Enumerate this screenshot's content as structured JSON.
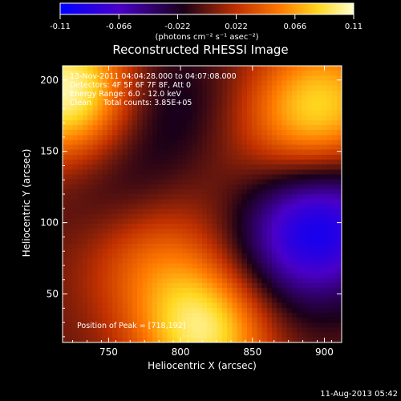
{
  "colorbar": {
    "ticks": [
      "-0.11",
      "-0.066",
      "-0.022",
      "0.022",
      "0.066",
      "0.11"
    ],
    "unit_label": "(photons cm⁻² s⁻¹ asec⁻²)"
  },
  "header": {
    "title": "Reconstructed RHESSI Image"
  },
  "info": {
    "line1": "13-Nov-2011 04:04:28.000 to 04:07:08.000",
    "line2": "Detectors: 4F 5F 6F 7F 8F, Att 0",
    "line3": "Energy Range: 6.0 - 12.0 keV",
    "line4": "Clean     Total counts: 3.85E+05",
    "peak": "Position of Peak = [718,192]"
  },
  "footer": {
    "date": "11-Aug-2013 05:42"
  },
  "chart_data": {
    "type": "heatmap",
    "title": "Reconstructed RHESSI Image",
    "xlabel": "Heliocentric X (arcsec)",
    "ylabel": "Heliocentric Y (arcsec)",
    "xlim": [
      718,
      912
    ],
    "ylim": [
      16,
      210
    ],
    "zlim": [
      -0.11,
      0.11
    ],
    "colorscale": [
      "#0000ff",
      "#4a00c8",
      "#1a0018",
      "#c03000",
      "#ff7a00",
      "#ffd820",
      "#ffffd0"
    ],
    "x_ticks": [
      "750",
      "800",
      "850",
      "900"
    ],
    "y_ticks": [
      "50",
      "100",
      "150",
      "200"
    ],
    "peak_position": [
      718,
      192
    ],
    "sources": [
      {
        "x": 722,
        "y": 192,
        "value": 0.11
      },
      {
        "x": 818,
        "y": 26,
        "value": 0.1
      },
      {
        "x": 775,
        "y": 82,
        "value": 0.045
      },
      {
        "x": 890,
        "y": 170,
        "value": 0.06
      },
      {
        "x": 905,
        "y": 195,
        "value": 0.035
      },
      {
        "x": 760,
        "y": 118,
        "value": -0.03
      },
      {
        "x": 785,
        "y": 185,
        "value": -0.03
      },
      {
        "x": 880,
        "y": 95,
        "value": -0.045
      },
      {
        "x": 905,
        "y": 100,
        "value": -0.06
      },
      {
        "x": 860,
        "y": 50,
        "value": -0.02
      },
      {
        "x": 838,
        "y": 125,
        "value": 0.008
      }
    ]
  }
}
